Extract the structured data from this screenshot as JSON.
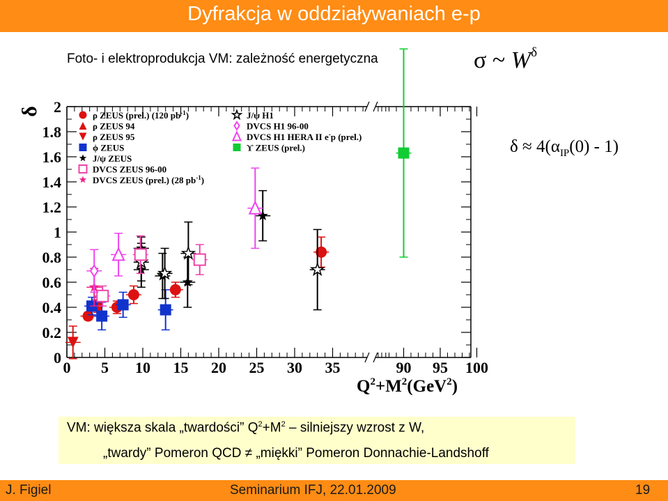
{
  "slide": {
    "title": "Dyfrakcja w oddziaływaniach e-p",
    "subtitle": "Foto-  i elektroprodukcja VM: zależność energetyczna",
    "formula_sigma": {
      "lhs": "σ ~ ",
      "var": "W",
      "exp": "δ"
    },
    "formula_delta": {
      "lhs": "δ ≈ 4(α",
      "sub": "IP",
      "rhs": "(0) - 1)"
    },
    "note": {
      "line1_a": "VM:  większa skala „twardości” Q",
      "line1_sup": "2",
      "line1_b": "+M",
      "line1_sup2": "2",
      "line1_c": " – silniejszy wzrost z W,",
      "line2": "„twardy”  Pomeron QCD  ≠  „miękki”  Pomeron Donnachie-Landshoff"
    },
    "footer": {
      "author": "J. Figiel",
      "event": "Seminarium IFJ, 22.01.2009",
      "page": "19"
    }
  },
  "colors": {
    "accent": "#ff8c14",
    "note_bg": "#ffffcc"
  },
  "chart_data": {
    "type": "scatter",
    "ylabel": "δ",
    "xlabel_base": "Q",
    "xlabel_sup": "2",
    "xlabel_mid": "+M",
    "xlabel_sup2": "2",
    "xlabel_end": "(GeV",
    "xlabel_sup3": "2",
    "xlabel_close": ")",
    "ylim": [
      0,
      2
    ],
    "yticks": [
      0,
      0.2,
      0.4,
      0.6,
      0.8,
      1,
      1.2,
      1.4,
      1.6,
      1.8,
      2
    ],
    "ytick_labels": [
      "0",
      "0.2",
      "0.4",
      "0.6",
      "0.8",
      "1",
      "1.2",
      "1.4",
      "1.6",
      "1.8",
      "2"
    ],
    "x_segments": [
      {
        "range": [
          0,
          42
        ],
        "ticks": [
          0,
          5,
          10,
          15,
          20,
          25,
          30,
          35
        ],
        "tick_labels": [
          "0",
          "5",
          "10",
          "15",
          "20",
          "25",
          "30",
          "35"
        ]
      },
      {
        "range": [
          87,
          100
        ],
        "ticks": [
          90,
          95,
          100
        ],
        "tick_labels": [
          "90",
          "95",
          "100"
        ]
      }
    ],
    "broken_axis": true,
    "grid": false,
    "legend_left": [
      {
        "name": "ρ ZEUS (prel.) (120 pb",
        "sup": "-1",
        "close": ")",
        "color": "#dd1111",
        "marker": "circle"
      },
      {
        "name": "ρ ZEUS 94",
        "color": "#dd1111",
        "marker": "triangle-up"
      },
      {
        "name": "ρ ZEUS 95",
        "color": "#dd1111",
        "marker": "triangle-down"
      },
      {
        "name": "ϕ ZEUS",
        "color": "#1133cc",
        "marker": "square"
      },
      {
        "name": "J/ψ ZEUS",
        "color": "#000000",
        "marker": "star"
      },
      {
        "name": "DVCS ZEUS 96-00",
        "color": "#ee44aa",
        "marker": "open-square"
      },
      {
        "name": "DVCS ZEUS (prel.) (28 pb",
        "sup": "-1",
        "close": ")",
        "color": "#ee2288",
        "marker": "star"
      }
    ],
    "legend_right": [
      {
        "name": "J/ψ H1",
        "color": "#000000",
        "marker": "open-star"
      },
      {
        "name": "DVCS H1 96-00",
        "color": "#ee44ee",
        "marker": "open-diamond"
      },
      {
        "name": "DVCS H1 HERA II e",
        "sup": "-",
        "close": "p (prel.)",
        "color": "#ee44ee",
        "marker": "open-triangle"
      },
      {
        "name": "ϒ ZEUS (prel.)",
        "color": "#11cc33",
        "marker": "filled-square"
      }
    ],
    "series": [
      {
        "name": "ρ ZEUS (prel.) (120 pb-1)",
        "color": "#dd1111",
        "marker": "circle",
        "points": [
          {
            "x": 2.8,
            "y": 0.33,
            "err": 0.03
          },
          {
            "x": 4.0,
            "y": 0.41,
            "err": 0.05
          },
          {
            "x": 6.6,
            "y": 0.4,
            "err": 0.05
          },
          {
            "x": 8.8,
            "y": 0.5,
            "err": 0.07
          },
          {
            "x": 14.3,
            "y": 0.54,
            "err": 0.06
          },
          {
            "x": 33.5,
            "y": 0.84,
            "err": 0.12
          }
        ]
      },
      {
        "name": "ρ ZEUS 95",
        "color": "#dd1111",
        "marker": "triangle-down",
        "points": [
          {
            "x": 0.8,
            "y": 0.12,
            "err": 0.13
          }
        ]
      },
      {
        "name": "ϕ ZEUS",
        "color": "#1133cc",
        "marker": "square",
        "points": [
          {
            "x": 3.3,
            "y": 0.41,
            "err": 0.07
          },
          {
            "x": 4.6,
            "y": 0.33,
            "err": 0.11
          },
          {
            "x": 7.4,
            "y": 0.42,
            "err": 0.1
          },
          {
            "x": 13.0,
            "y": 0.38,
            "err": 0.16
          }
        ]
      },
      {
        "name": "J/ψ ZEUS",
        "color": "#000000",
        "marker": "star",
        "points": [
          {
            "x": 9.8,
            "y": 0.87,
            "err": 0.09
          },
          {
            "x": 9.8,
            "y": 0.7,
            "err": 0.14
          },
          {
            "x": 12.6,
            "y": 0.65,
            "err": 0.18
          },
          {
            "x": 15.9,
            "y": 0.6,
            "err": 0.2
          },
          {
            "x": 25.8,
            "y": 1.13,
            "err": 0.2
          }
        ]
      },
      {
        "name": "J/ψ H1",
        "color": "#000000",
        "marker": "open-star",
        "points": [
          {
            "x": 9.8,
            "y": 0.76,
            "err": 0.15
          },
          {
            "x": 12.9,
            "y": 0.67,
            "err": 0.2
          },
          {
            "x": 16.0,
            "y": 0.83,
            "err": 0.25
          },
          {
            "x": 33.0,
            "y": 0.7,
            "err": 0.32
          }
        ]
      },
      {
        "name": "DVCS ZEUS 96-00",
        "color": "#ee44aa",
        "marker": "open-square",
        "points": [
          {
            "x": 4.7,
            "y": 0.49,
            "err": 0.08
          },
          {
            "x": 9.7,
            "y": 0.82,
            "err": 0.15
          },
          {
            "x": 17.5,
            "y": 0.78,
            "err": 0.12
          }
        ]
      },
      {
        "name": "DVCS ZEUS (prel.) (28 pb-1)",
        "color": "#ee2288",
        "marker": "star",
        "points": [
          {
            "x": 3.6,
            "y": 0.56,
            "err": 0.15
          }
        ]
      },
      {
        "name": "DVCS H1 96-00",
        "color": "#ee44ee",
        "marker": "open-diamond",
        "points": [
          {
            "x": 3.6,
            "y": 0.69,
            "err": 0.17
          }
        ]
      },
      {
        "name": "DVCS H1 HERA II e-p (prel.)",
        "color": "#ee44ee",
        "marker": "open-triangle",
        "points": [
          {
            "x": 6.8,
            "y": 0.82,
            "err": 0.17
          },
          {
            "x": 24.8,
            "y": 1.19,
            "err": 0.32
          }
        ]
      },
      {
        "name": "ϒ ZEUS (prel.)",
        "color": "#11cc33",
        "marker": "filled-square",
        "points": [
          {
            "x": 90.0,
            "y": 1.63,
            "err": 0.83
          }
        ]
      }
    ]
  }
}
